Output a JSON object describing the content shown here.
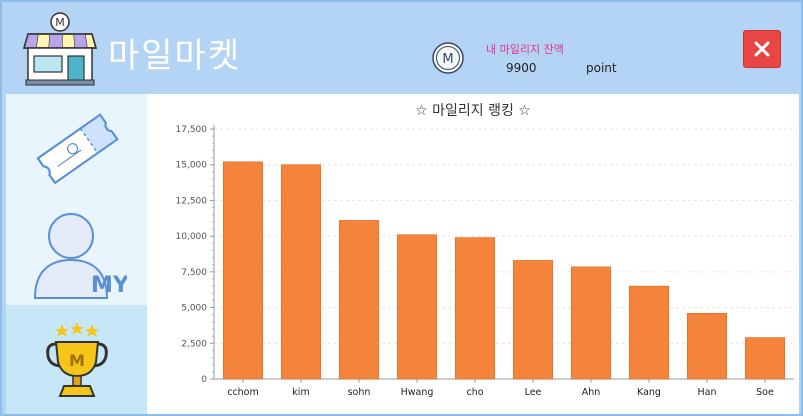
{
  "header": {
    "app_title": "마일마켓",
    "balance_label": "내 마일리지 잔액",
    "balance_value": "9900",
    "balance_unit": "point",
    "close_icon": "close-icon"
  },
  "sidebar": {
    "items": [
      {
        "name": "coupon",
        "icon": "ticket-icon"
      },
      {
        "name": "my",
        "icon": "my-user-icon",
        "text": "MY"
      },
      {
        "name": "ranking",
        "icon": "trophy-icon",
        "text": "M"
      }
    ]
  },
  "colors": {
    "header_bg": "#b4d4f6",
    "bar": "#f4843c",
    "close": "#e84545",
    "active_side": "#c6e7f8"
  },
  "chart_data": {
    "type": "bar",
    "title": "☆ 마일리지 랭킹 ☆",
    "categories": [
      "cchom",
      "kim",
      "sohn",
      "Hwang",
      "cho",
      "Lee",
      "Ahn",
      "Kang",
      "Han",
      "Soe"
    ],
    "values": [
      15200,
      15000,
      11100,
      10100,
      9900,
      8300,
      7850,
      6500,
      4600,
      2900
    ],
    "ylim": [
      0,
      17500
    ],
    "yticks": [
      0,
      2500,
      5000,
      7500,
      10000,
      12500,
      15000,
      17500
    ],
    "ytick_labels": [
      "0",
      "2,500",
      "5,000",
      "7,500",
      "10,000",
      "12,500",
      "15,000",
      "17,500"
    ],
    "xlabel": "",
    "ylabel": "",
    "grid": true
  }
}
